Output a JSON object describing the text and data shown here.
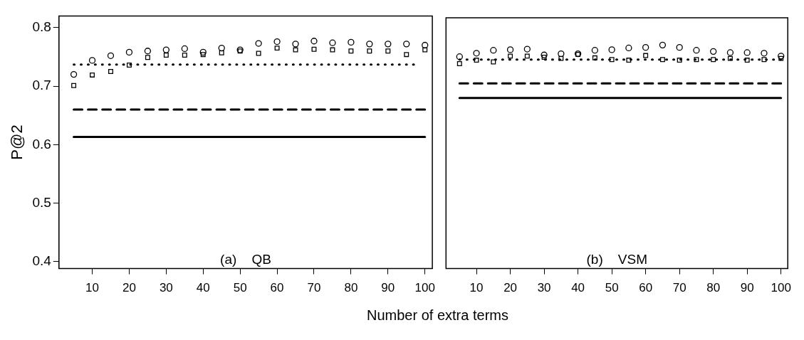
{
  "chart_data": [
    {
      "type": "scatter",
      "ylabel": "P@2",
      "xlabel": "Number of extra terms",
      "annotations": [
        "(a)    QB"
      ],
      "xlim": [
        1,
        102
      ],
      "xticks": [
        10,
        20,
        30,
        40,
        50,
        60,
        70,
        80,
        90,
        100
      ],
      "ylim": [
        0.388,
        0.82
      ],
      "yticks": [
        0.4,
        0.5,
        0.6,
        0.7,
        0.8
      ],
      "grid": false,
      "legend": false,
      "x": [
        5,
        10,
        15,
        20,
        25,
        30,
        35,
        40,
        45,
        50,
        55,
        60,
        65,
        70,
        75,
        80,
        85,
        90,
        95,
        100
      ],
      "series": [
        {
          "marker": "circle",
          "color": "#000000",
          "values": [
            0.72,
            0.744,
            0.752,
            0.758,
            0.76,
            0.762,
            0.764,
            0.758,
            0.765,
            0.762,
            0.773,
            0.776,
            0.772,
            0.777,
            0.774,
            0.775,
            0.772,
            0.772,
            0.772,
            0.77
          ]
        },
        {
          "marker": "square",
          "color": "#000000",
          "values": [
            0.701,
            0.719,
            0.725,
            0.736,
            0.749,
            0.753,
            0.753,
            0.754,
            0.757,
            0.76,
            0.756,
            0.765,
            0.762,
            0.763,
            0.762,
            0.76,
            0.76,
            0.76,
            0.754,
            0.762
          ]
        },
        {
          "type": "line",
          "line_style": "dotted",
          "color": "#000000",
          "x": [
            5,
            97
          ],
          "values": [
            0.737,
            0.737
          ]
        },
        {
          "type": "line",
          "line_style": "dashed",
          "color": "#000000",
          "x": [
            5,
            100
          ],
          "values": [
            0.66,
            0.66
          ]
        },
        {
          "type": "line",
          "line_style": "solid",
          "color": "#000000",
          "x": [
            5,
            100
          ],
          "values": [
            0.613,
            0.613
          ]
        }
      ]
    },
    {
      "type": "scatter",
      "annotations": [
        "(b)    VSM"
      ],
      "xlim": [
        1,
        102
      ],
      "xticks": [
        10,
        20,
        30,
        40,
        50,
        60,
        70,
        80,
        90,
        100
      ],
      "ylim": [
        0.388,
        0.82
      ],
      "tick_labels": "x",
      "grid": false,
      "legend": false,
      "x": [
        5,
        10,
        15,
        20,
        25,
        30,
        35,
        40,
        45,
        50,
        55,
        60,
        65,
        70,
        75,
        80,
        85,
        90,
        95,
        100
      ],
      "series": [
        {
          "marker": "circle",
          "color": "#000000",
          "values": [
            0.753,
            0.759,
            0.764,
            0.765,
            0.766,
            0.756,
            0.758,
            0.758,
            0.764,
            0.765,
            0.768,
            0.769,
            0.773,
            0.769,
            0.764,
            0.762,
            0.76,
            0.76,
            0.759,
            0.754
          ]
        },
        {
          "marker": "square",
          "color": "#000000",
          "values": [
            0.741,
            0.747,
            0.744,
            0.754,
            0.754,
            0.752,
            0.75,
            0.757,
            0.751,
            0.748,
            0.747,
            0.755,
            0.748,
            0.747,
            0.748,
            0.748,
            0.75,
            0.747,
            0.748,
            0.75
          ]
        },
        {
          "type": "line",
          "line_style": "dotted",
          "color": "#000000",
          "x": [
            5,
            100
          ],
          "values": [
            0.748,
            0.748
          ]
        },
        {
          "type": "line",
          "line_style": "dashed",
          "color": "#000000",
          "x": [
            5,
            100
          ],
          "values": [
            0.707,
            0.707
          ]
        },
        {
          "type": "line",
          "line_style": "solid",
          "color": "#000000",
          "x": [
            5,
            100
          ],
          "values": [
            0.682,
            0.682
          ]
        }
      ]
    }
  ]
}
